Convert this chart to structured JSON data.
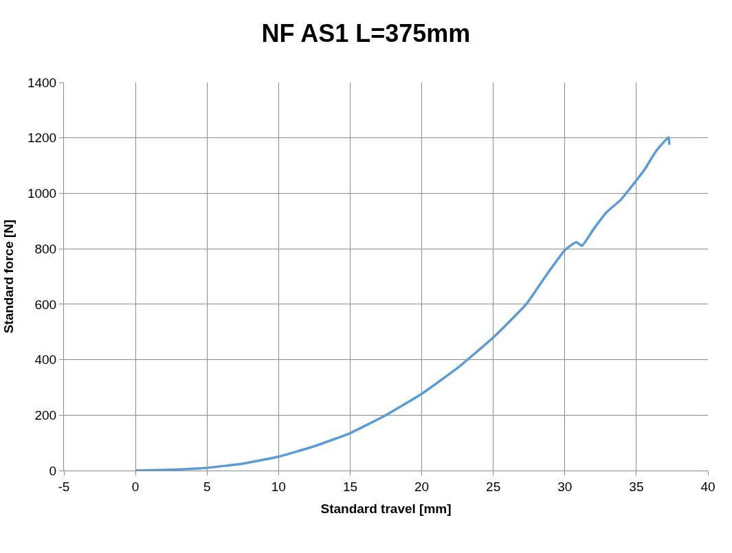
{
  "chart_data": {
    "type": "line",
    "title": "NF AS1 L=375mm",
    "xlabel": "Standard travel [mm]",
    "ylabel": "Standard force [N]",
    "x": [
      0,
      2.5,
      5,
      7.5,
      10,
      12.5,
      15,
      17.5,
      20,
      22.5,
      25,
      27.3,
      28.8,
      30,
      30.5,
      30.8,
      31.2,
      32,
      32.9,
      33.9,
      34.3,
      35.05,
      35.6,
      36.4,
      37.25,
      37.3
    ],
    "series": [
      {
        "color": "#5b9bd5",
        "values": [
          0,
          3,
          10,
          25,
          50,
          88,
          135,
          200,
          277,
          370,
          480,
          600,
          712,
          795,
          815,
          824,
          811,
          870,
          931,
          976,
          1001,
          1050,
          1088,
          1154,
          1202,
          1175
        ]
      }
    ],
    "xlim": [
      -5,
      40
    ],
    "xticks": [
      -5,
      0,
      5,
      10,
      15,
      20,
      25,
      30,
      35,
      40
    ],
    "ylim": [
      0,
      1400
    ],
    "yticks": [
      0,
      200,
      400,
      600,
      800,
      1000,
      1200,
      1400
    ],
    "grid": true,
    "legend": false,
    "marker": "none",
    "line_style": "solid"
  }
}
